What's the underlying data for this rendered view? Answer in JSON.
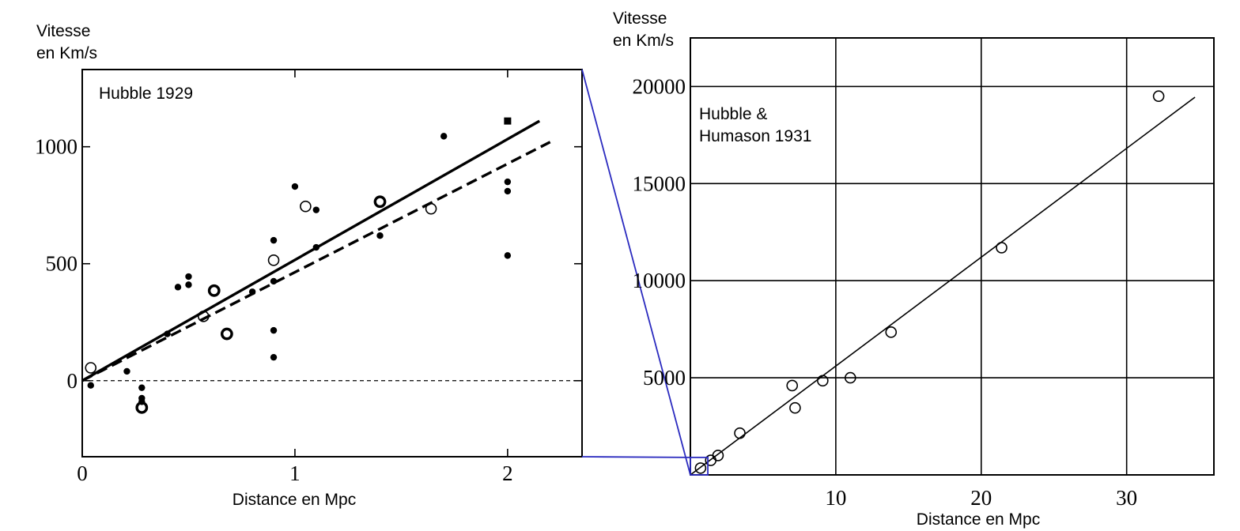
{
  "colors": {
    "ink": "#000000",
    "zoom": "#2b2bbf",
    "background": "#ffffff"
  },
  "chart_data": [
    {
      "type": "scatter",
      "title": "Hubble 1929",
      "ylabel": [
        "Vitesse",
        "en Km/s"
      ],
      "xlabel": "Distance en Mpc",
      "xlim": [
        0,
        2.35
      ],
      "ylim": [
        -325,
        1330
      ],
      "xticks": [
        0,
        1,
        2
      ],
      "xtick_labels": [
        "0",
        "1",
        "2"
      ],
      "yticks": [
        0,
        500,
        1000
      ],
      "ytick_labels": [
        "0",
        "500",
        "1000"
      ],
      "grid": false,
      "legend": "none",
      "series": [
        {
          "marker": "filled-circle",
          "points": [
            [
              0.04,
              -20
            ],
            [
              0.21,
              40
            ],
            [
              0.28,
              -30
            ],
            [
              0.28,
              -75
            ],
            [
              0.28,
              -90
            ],
            [
              0.4,
              200
            ],
            [
              0.45,
              400
            ],
            [
              0.5,
              445
            ],
            [
              0.5,
              410
            ],
            [
              0.8,
              380
            ],
            [
              0.9,
              600
            ],
            [
              0.9,
              425
            ],
            [
              0.9,
              215
            ],
            [
              0.9,
              100
            ],
            [
              1.0,
              830
            ],
            [
              1.1,
              730
            ],
            [
              1.1,
              570
            ],
            [
              1.4,
              620
            ],
            [
              1.7,
              1045
            ],
            [
              2.0,
              850
            ],
            [
              2.0,
              810
            ],
            [
              2.0,
              535
            ]
          ]
        },
        {
          "marker": "open-circle",
          "points": [
            [
              0.04,
              55
            ],
            [
              0.57,
              275
            ],
            [
              0.9,
              515
            ],
            [
              1.05,
              745
            ],
            [
              1.64,
              735
            ]
          ]
        },
        {
          "marker": "bold-open-circle",
          "points": [
            [
              0.28,
              -115
            ],
            [
              0.62,
              385
            ],
            [
              0.68,
              200
            ],
            [
              1.4,
              765
            ]
          ]
        },
        {
          "marker": "filled-square",
          "points": [
            [
              2.0,
              1110
            ]
          ]
        }
      ],
      "fits": [
        {
          "style": "solid",
          "from": [
            0,
            0
          ],
          "to": [
            2.15,
            1110
          ]
        },
        {
          "style": "dashed",
          "from": [
            0,
            0
          ],
          "to": [
            2.2,
            1020
          ]
        },
        {
          "style": "dotted",
          "from": [
            0,
            0
          ],
          "to": [
            2.35,
            0
          ]
        }
      ]
    },
    {
      "type": "scatter",
      "title": [
        "Hubble &",
        "Humason 1931"
      ],
      "ylabel": [
        "Vitesse",
        "en Km/s"
      ],
      "xlabel": "Distance en Mpc",
      "xlim": [
        0,
        36
      ],
      "ylim": [
        0,
        22500
      ],
      "xticks": [
        10,
        20,
        30
      ],
      "xtick_labels": [
        "10",
        "20",
        "30"
      ],
      "yticks": [
        5000,
        10000,
        15000,
        20000
      ],
      "ytick_labels": [
        "5000",
        "10000",
        "15000",
        "20000"
      ],
      "grid": true,
      "legend": "none",
      "series": [
        {
          "marker": "open-circle",
          "points": [
            [
              0.7,
              350
            ],
            [
              1.4,
              750
            ],
            [
              1.9,
              1000
            ],
            [
              3.4,
              2150
            ],
            [
              7.0,
              4600
            ],
            [
              7.2,
              3450
            ],
            [
              9.1,
              4850
            ],
            [
              11.0,
              5000
            ],
            [
              13.8,
              7350
            ],
            [
              21.4,
              11700
            ],
            [
              32.2,
              19500
            ]
          ]
        }
      ],
      "fits": [
        {
          "style": "solid",
          "from": [
            0,
            0
          ],
          "to": [
            34.7,
            19450
          ]
        }
      ],
      "zoom_box": {
        "x": [
          0,
          1.2
        ],
        "y": [
          0,
          900
        ]
      }
    }
  ]
}
